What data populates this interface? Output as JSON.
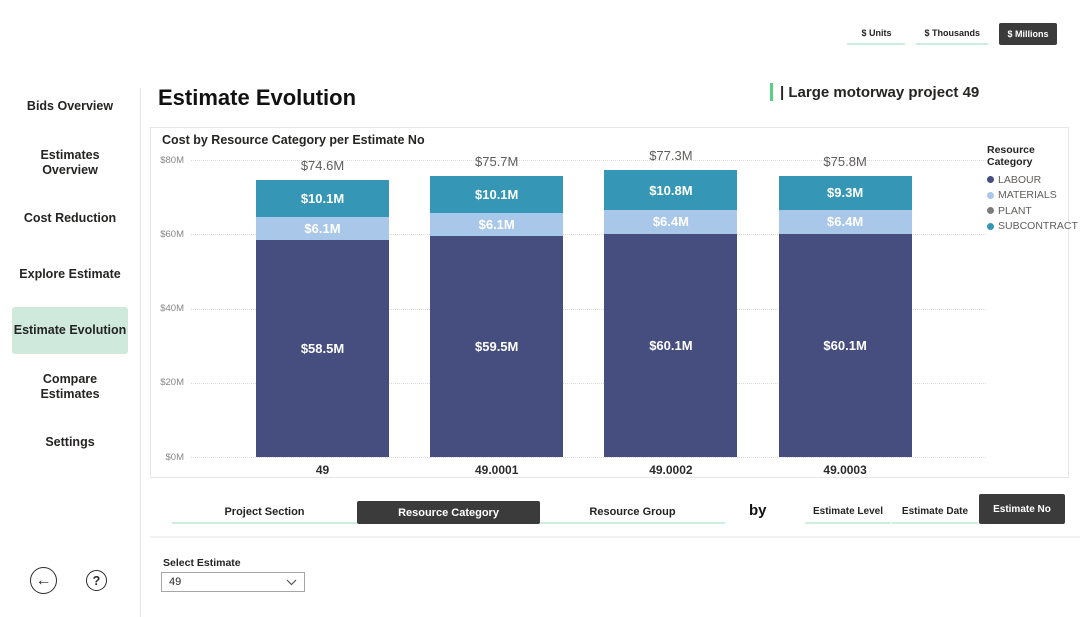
{
  "colors": {
    "accent_green": "#57d188",
    "mint_underline": "#cdeedd",
    "sidebar_active_bg": "#cfe9dc",
    "dark_button": "#3b3b3b",
    "labour": "#454e7e",
    "materials": "#a9c7e8",
    "plant": "#7c7c7c",
    "subcontract": "#3596b5"
  },
  "unit_toggle": {
    "options": [
      {
        "label": "$ Units",
        "active": false
      },
      {
        "label": "$ Thousands",
        "active": false
      },
      {
        "label": "$ Millions",
        "active": true
      }
    ]
  },
  "sidebar": {
    "items": [
      {
        "label": "Bids Overview",
        "active": false
      },
      {
        "label": "Estimates Overview",
        "active": false
      },
      {
        "label": "Cost Reduction",
        "active": false
      },
      {
        "label": "Explore Estimate",
        "active": false
      },
      {
        "label": "Estimate Evolution",
        "active": true
      },
      {
        "label": "Compare Estimates",
        "active": false
      },
      {
        "label": "Settings",
        "active": false
      }
    ]
  },
  "header": {
    "title": "Estimate Evolution",
    "project": "| Large motorway project 49"
  },
  "chart_data": {
    "type": "bar",
    "stacked": true,
    "title": "Cost by Resource Category per Estimate No",
    "categories": [
      "49",
      "49.0001",
      "49.0002",
      "49.0003"
    ],
    "series": [
      {
        "name": "LABOUR",
        "color": "#454e7e",
        "values": [
          58.5,
          59.5,
          60.1,
          60.1
        ],
        "labels": [
          "$58.5M",
          "$59.5M",
          "$60.1M",
          "$60.1M"
        ]
      },
      {
        "name": "MATERIALS",
        "color": "#a9c7e8",
        "values": [
          6.1,
          6.1,
          6.4,
          6.4
        ],
        "labels": [
          "$6.1M",
          "$6.1M",
          "$6.4M",
          "$6.4M"
        ]
      },
      {
        "name": "PLANT",
        "color": "#7c7c7c",
        "values": [
          0,
          0,
          0,
          0
        ],
        "labels": [
          "",
          "",
          "",
          ""
        ]
      },
      {
        "name": "SUBCONTRACT",
        "color": "#3596b5",
        "values": [
          10.1,
          10.1,
          10.8,
          9.3
        ],
        "labels": [
          "$10.1M",
          "$10.1M",
          "$10.8M",
          "$9.3M"
        ]
      }
    ],
    "totals": [
      "$74.6M",
      "$75.7M",
      "$77.3M",
      "$75.8M"
    ],
    "y_ticks": [
      {
        "label": "$80M",
        "value": 80
      },
      {
        "label": "$60M",
        "value": 60
      },
      {
        "label": "$40M",
        "value": 40
      },
      {
        "label": "$20M",
        "value": 20
      },
      {
        "label": "$0M",
        "value": 0
      }
    ],
    "ylim": [
      0,
      80
    ],
    "xlabel": "",
    "ylabel": "",
    "grid": "horizontal-dotted",
    "legend_title": "Resource Category",
    "legend_position": "right"
  },
  "dimension_buttons": {
    "left": [
      {
        "label": "Project Section",
        "active": false
      },
      {
        "label": "Resource Category",
        "active": true
      },
      {
        "label": "Resource Group",
        "active": false
      }
    ],
    "by_label": "by",
    "right": [
      {
        "label": "Estimate Level",
        "active": false
      },
      {
        "label": "Estimate Date",
        "active": false
      },
      {
        "label": "Estimate No",
        "active": true
      }
    ]
  },
  "estimate_selector": {
    "label": "Select Estimate",
    "value": "49"
  },
  "footer": {
    "back_icon": "left-arrow",
    "help_icon": "question-mark",
    "back_glyph": "←",
    "help_glyph": "?"
  }
}
